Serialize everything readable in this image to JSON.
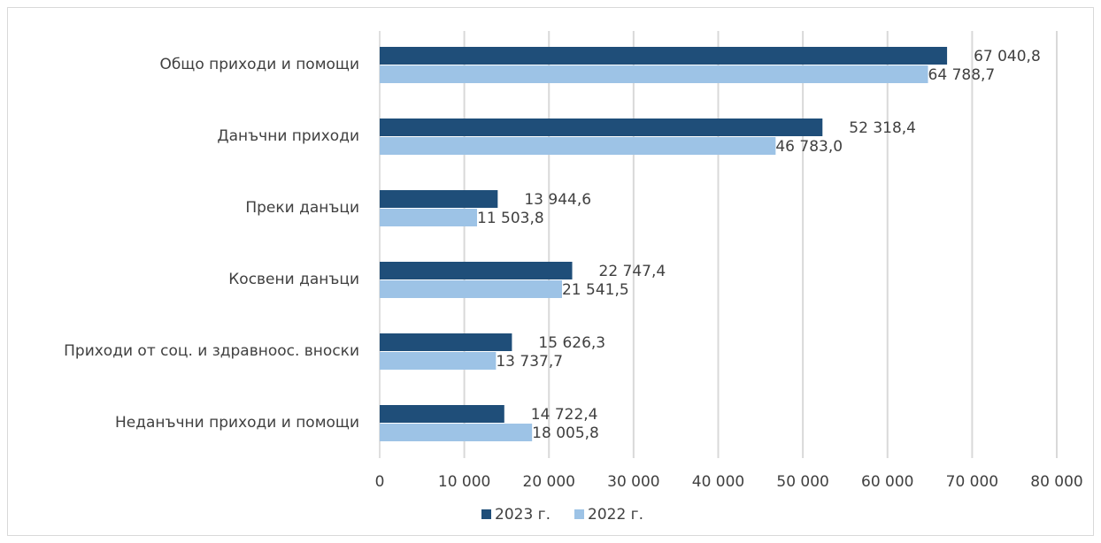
{
  "chart_data": {
    "type": "bar",
    "orientation": "horizontal",
    "categories": [
      "Общо приходи и помощи",
      "Данъчни приходи",
      "Преки данъци",
      "Косвени данъци",
      "Приходи от соц. и здравноос. вноски",
      "Неданъчни приходи и помощи"
    ],
    "series": [
      {
        "name": "2023 г.",
        "color": "#1f4e79",
        "values": [
          67040.8,
          52318.4,
          13944.6,
          22747.4,
          15626.3,
          14722.4
        ],
        "labels": [
          "67 040,8",
          "52 318,4",
          "13 944,6",
          "22 747,4",
          "15 626,3",
          "14 722,4"
        ]
      },
      {
        "name": "2022 г.",
        "color": "#9dc3e6",
        "values": [
          64788.7,
          46783.0,
          11503.8,
          21541.5,
          13737.7,
          18005.8
        ],
        "labels": [
          "64 788,7",
          "46 783,0",
          "11 503,8",
          "21 541,5",
          "13 737,7",
          "18 005,8"
        ]
      }
    ],
    "xlim": [
      0,
      80000
    ],
    "xticks": [
      0,
      10000,
      20000,
      30000,
      40000,
      50000,
      60000,
      70000,
      80000
    ],
    "xtick_labels": [
      "0",
      "10 000",
      "20 000",
      "30 000",
      "40 000",
      "50 000",
      "60 000",
      "70 000",
      "80 000"
    ],
    "grid": true,
    "legend_position": "bottom"
  }
}
